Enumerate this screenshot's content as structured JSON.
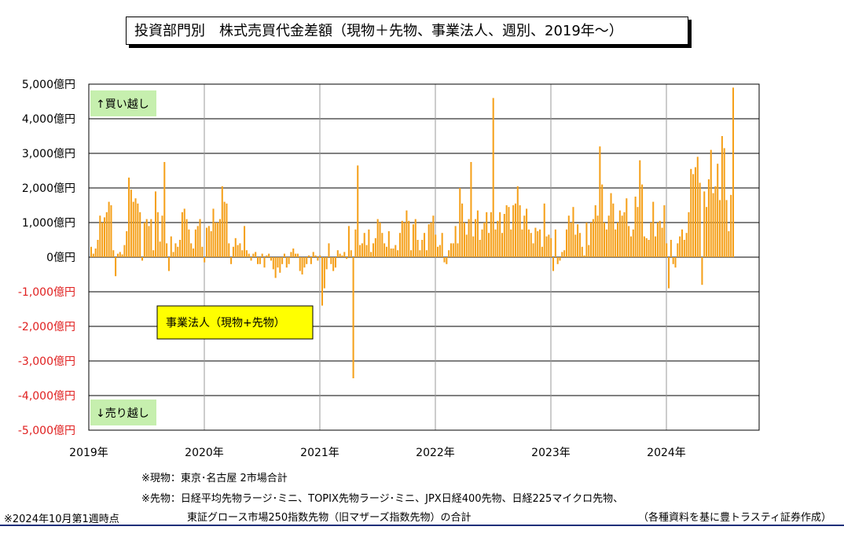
{
  "title": "投資部門別　株式売買代金差額（現物＋先物、事業法人、週別、2019年～）",
  "chart_data": {
    "type": "bar",
    "title": "投資部門別　株式売買代金差額（現物＋先物、事業法人、週別、2019年～）",
    "ylim": [
      -5000,
      5000
    ],
    "yticks": [
      {
        "value": 5000,
        "label": "5,000億円"
      },
      {
        "value": 4000,
        "label": "4,000億円"
      },
      {
        "value": 3000,
        "label": "3,000億円"
      },
      {
        "value": 2000,
        "label": "2,000億円"
      },
      {
        "value": 1000,
        "label": "1,000億円"
      },
      {
        "value": 0,
        "label": "0億円"
      },
      {
        "value": -1000,
        "label": "-1,000億円"
      },
      {
        "value": -2000,
        "label": "-2,000億円"
      },
      {
        "value": -3000,
        "label": "-3,000億円"
      },
      {
        "value": -4000,
        "label": "-4,000億円"
      },
      {
        "value": -5000,
        "label": "-5,000億円"
      }
    ],
    "xticks": [
      {
        "week": 0,
        "label": "2019年"
      },
      {
        "week": 52,
        "label": "2020年"
      },
      {
        "week": 104,
        "label": "2021年"
      },
      {
        "week": 156,
        "label": "2022年"
      },
      {
        "week": 208,
        "label": "2023年"
      },
      {
        "week": 260,
        "label": "2024年"
      }
    ],
    "grid": true,
    "bar_color": "#f5a01a",
    "series": [
      {
        "name": "事業法人（現物+先物）",
        "values": [
          300,
          100,
          250,
          500,
          1200,
          1000,
          1150,
          1300,
          1600,
          1500,
          200,
          -550,
          100,
          150,
          80,
          350,
          750,
          2300,
          1950,
          1600,
          1700,
          1550,
          1300,
          -100,
          1000,
          1100,
          900,
          1100,
          200,
          1900,
          1300,
          450,
          1200,
          2750,
          400,
          -400,
          600,
          150,
          400,
          300,
          500,
          1300,
          1400,
          1100,
          800,
          400,
          250,
          800,
          900,
          1100,
          300,
          -150,
          850,
          900,
          750,
          1400,
          1000,
          1000,
          1100,
          2050,
          1600,
          1550,
          400,
          -200,
          300,
          550,
          350,
          400,
          200,
          900,
          200,
          100,
          -100,
          100,
          150,
          -200,
          -200,
          100,
          -300,
          50,
          100,
          -100,
          -350,
          -600,
          -300,
          -450,
          -200,
          100,
          -300,
          -200,
          150,
          250,
          100,
          100,
          -400,
          -500,
          -300,
          -200,
          50,
          -200,
          150,
          50,
          -100,
          50,
          -1400,
          -900,
          -350,
          400,
          -200,
          -400,
          -300,
          200,
          100,
          50,
          150,
          -50,
          900,
          200,
          -3500,
          800,
          2650,
          350,
          400,
          700,
          350,
          800,
          150,
          400,
          550,
          1100,
          1000,
          700,
          400,
          300,
          750,
          250,
          250,
          350,
          200,
          700,
          1050,
          1000,
          1350,
          1050,
          200,
          950,
          1100,
          500,
          200,
          500,
          700,
          200,
          950,
          1000,
          1200,
          650,
          300,
          350,
          700,
          -150,
          -200,
          200,
          400,
          400,
          900,
          400,
          2000,
          1550,
          1000,
          650,
          1100,
          2750,
          600,
          1100,
          1350,
          500,
          800,
          1000,
          1300,
          700,
          1300,
          4600,
          800,
          1050,
          1300,
          700,
          1250,
          1500,
          1450,
          800,
          1500,
          1550,
          2050,
          1500,
          800,
          1200,
          1400,
          800,
          700,
          400,
          850,
          750,
          800,
          300,
          1550,
          600,
          650,
          550,
          -400,
          800,
          -200,
          -100,
          150,
          200,
          800,
          1200,
          1000,
          1450,
          650,
          950,
          700,
          300,
          50,
          1000,
          350,
          1000,
          1100,
          1500,
          1200,
          3200,
          2100,
          1000,
          800,
          1200,
          1850,
          1550,
          800,
          1000,
          1350,
          1200,
          1300,
          1700,
          900,
          600,
          800,
          1750,
          1450,
          2800,
          2100,
          600,
          550,
          500,
          1000,
          1600,
          600,
          1000,
          1050,
          850,
          1500,
          400,
          -900,
          500,
          -200,
          -300,
          400,
          600,
          800,
          500,
          700,
          1300,
          2550,
          2400,
          2600,
          2900,
          2150,
          -800,
          1900,
          1450,
          2250,
          3100,
          1850,
          2050,
          2700,
          1650,
          3500,
          3150,
          1650,
          750,
          1800,
          4900
        ]
      }
    ],
    "annotations": {
      "buy": "↑買い越し",
      "sell": "↓売り越し",
      "series_label": "事業法人（現物+先物）"
    }
  },
  "notes": {
    "spot": "※現物：東京･名古屋 2市場合計",
    "futures_line1": "※先物：日経平均先物ラージ･ミニ、TOPIX先物ラージ･ミニ、JPX日経400先物、日経225マイクロ先物、",
    "futures_line2": "東証グロース市場250指数先物（旧マザーズ指数先物）の合計",
    "as_of": "※2024年10月第1週時点",
    "source": "（各種資料を基に豊トラスティ証券作成）"
  }
}
